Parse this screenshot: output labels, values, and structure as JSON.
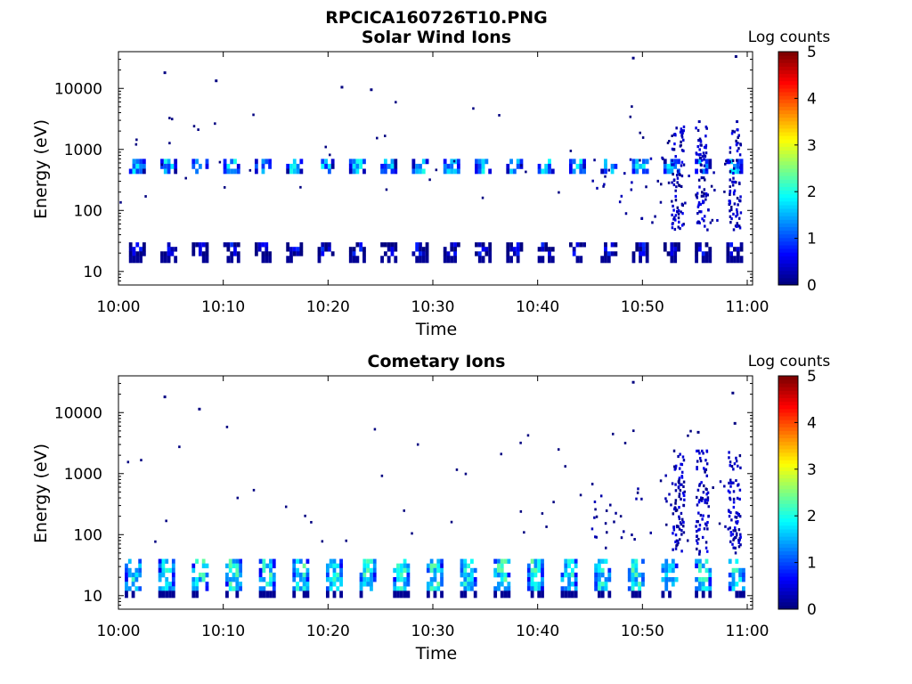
{
  "figure": {
    "title": "RPCICA160726T10.PNG"
  },
  "chart_data": [
    {
      "type": "heatmap",
      "title": "Solar Wind Ions",
      "xlabel": "Time",
      "ylabel": "Energy (eV)",
      "x_ticks": [
        "10:00",
        "10:10",
        "10:20",
        "10:30",
        "10:40",
        "10:50",
        "11:00"
      ],
      "xlim": [
        "10:00",
        "11:00"
      ],
      "y_scale": "log",
      "y_ticks": [
        "10",
        "100",
        "1000",
        "10000"
      ],
      "ylim": [
        6,
        40000
      ],
      "colorbar": {
        "label": "Log counts",
        "ticks": [
          "0",
          "1",
          "2",
          "3",
          "4",
          "5"
        ],
        "range": [
          0,
          5
        ],
        "colormap": "jet"
      },
      "scan_start_minutes": [
        1,
        4,
        7,
        10,
        13,
        16,
        19,
        22,
        25,
        28,
        31,
        34,
        37,
        40,
        43,
        46,
        49,
        52,
        55,
        58
      ],
      "bands": [
        {
          "name_hidden": true,
          "energy_low_eV": 18,
          "energy_high_eV": 30,
          "log_counts": 0.3
        },
        {
          "energy_low_eV": 400,
          "energy_high_eV": 700,
          "log_counts": 1.4
        }
      ],
      "scattered_counts": [
        {
          "time_min": 4.3,
          "energy_eV": 19000,
          "log_counts": 0
        },
        {
          "time_min": 9.2,
          "energy_eV": 14000,
          "log_counts": 0
        },
        {
          "time_min": 21.2,
          "energy_eV": 11000,
          "log_counts": 0
        },
        {
          "time_min": 24,
          "energy_eV": 10000,
          "log_counts": 0
        },
        {
          "time_min": 49,
          "energy_eV": 33000,
          "log_counts": 0
        },
        {
          "time_min": 58.8,
          "energy_eV": 35000,
          "log_counts": 0
        },
        {
          "time_min": 55.3,
          "energy_eV": 3000,
          "log_counts": 0.2
        },
        {
          "time_min": 58.9,
          "energy_eV": 3000,
          "log_counts": 0.2
        }
      ]
    },
    {
      "type": "heatmap",
      "title": "Cometary Ions",
      "xlabel": "Time",
      "ylabel": "Energy (eV)",
      "x_ticks": [
        "10:00",
        "10:10",
        "10:20",
        "10:30",
        "10:40",
        "10:50",
        "11:00"
      ],
      "xlim": [
        "10:00",
        "11:00"
      ],
      "y_scale": "log",
      "y_ticks": [
        "10",
        "100",
        "1000",
        "10000"
      ],
      "ylim": [
        6,
        40000
      ],
      "colorbar": {
        "label": "Log counts",
        "ticks": [
          "0",
          "1",
          "2",
          "3",
          "4",
          "5"
        ],
        "range": [
          0,
          5
        ],
        "colormap": "jet"
      },
      "scan_start_minutes": [
        0.6,
        3.8,
        7,
        10.2,
        13.4,
        16.6,
        19.8,
        23,
        26.2,
        29.4,
        32.6,
        35.8,
        39,
        42.2,
        45.4,
        48.6,
        51.8,
        55,
        58.2
      ],
      "bands": [
        {
          "energy_low_eV": 12,
          "energy_high_eV": 40,
          "log_counts": 1.8
        }
      ],
      "scattered_counts": [
        {
          "time_min": 4.3,
          "energy_eV": 19000,
          "log_counts": 0
        },
        {
          "time_min": 7.6,
          "energy_eV": 12000,
          "log_counts": 0
        },
        {
          "time_min": 49,
          "energy_eV": 33000,
          "log_counts": 0
        },
        {
          "time_min": 58.5,
          "energy_eV": 22000,
          "log_counts": 0
        },
        {
          "time_min": 55.2,
          "energy_eV": 5000,
          "log_counts": 0
        },
        {
          "time_min": 58.7,
          "energy_eV": 7000,
          "log_counts": 0
        }
      ]
    }
  ]
}
